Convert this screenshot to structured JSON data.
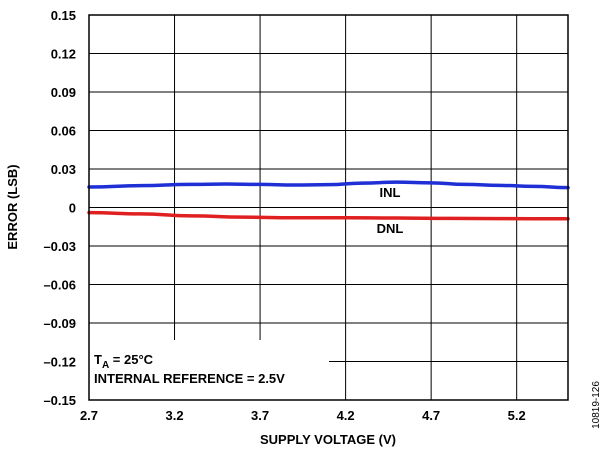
{
  "chart_data": {
    "type": "line",
    "xlabel": "SUPPLY VOLTAGE (V)",
    "ylabel": "ERROR (LSB)",
    "xlim": [
      2.7,
      5.5
    ],
    "ylim": [
      -0.15,
      0.15
    ],
    "x_ticks": [
      2.7,
      3.2,
      3.7,
      4.2,
      4.7,
      5.2
    ],
    "x_tick_labels": [
      "2.7",
      "3.2",
      "3.7",
      "4.2",
      "4.7",
      "5.2"
    ],
    "y_ticks": [
      0.15,
      0.12,
      0.09,
      0.06,
      0.03,
      0,
      -0.03,
      -0.06,
      -0.09,
      -0.12,
      -0.15
    ],
    "y_tick_labels": [
      "0.15",
      "0.12",
      "0.09",
      "0.06",
      "0.03",
      "0",
      "–0.03",
      "–0.06",
      "–0.09",
      "–0.12",
      "–0.15"
    ],
    "grid": true,
    "series": [
      {
        "name": "INL",
        "color": "#1f2fd6",
        "x": [
          2.7,
          3.0,
          3.3,
          3.5,
          3.7,
          3.9,
          4.1,
          4.3,
          4.5,
          4.7,
          4.9,
          5.1,
          5.3,
          5.5
        ],
        "values": [
          0.016,
          0.017,
          0.018,
          0.0183,
          0.018,
          0.0175,
          0.0178,
          0.019,
          0.0198,
          0.0192,
          0.018,
          0.0172,
          0.0165,
          0.0155
        ]
      },
      {
        "name": "DNL",
        "color": "#e02020",
        "x": [
          2.7,
          3.0,
          3.3,
          3.6,
          3.9,
          4.2,
          4.5,
          4.8,
          5.1,
          5.5
        ],
        "values": [
          -0.004,
          -0.005,
          -0.0065,
          -0.0075,
          -0.008,
          -0.008,
          -0.0082,
          -0.0085,
          -0.0087,
          -0.0088
        ]
      }
    ],
    "annotation": {
      "line1_main": "T",
      "line1_sub": "A",
      "line1_rest": " = 25°C",
      "line2": "INTERNAL REFERENCE = 2.5V"
    },
    "figure_id": "10819-126"
  }
}
